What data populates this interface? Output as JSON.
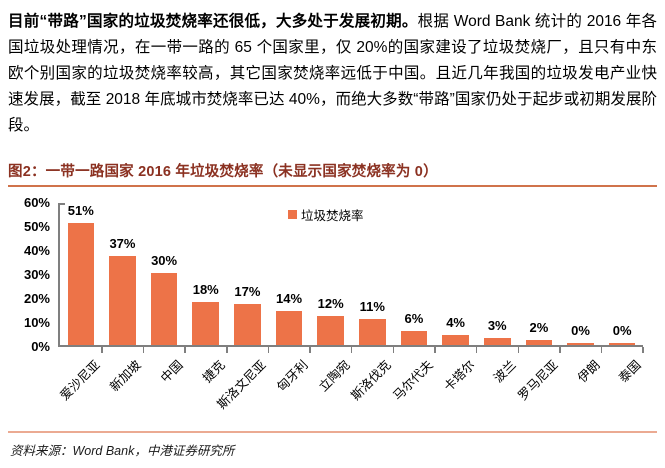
{
  "intro": {
    "lead": "目前“带路”国家的垃圾焚烧率还很低，大多处于发展初期。",
    "body": "根据 Word Bank 统计的 2016 年各国垃圾处理情况，在一带一路的 65 个国家里，仅 20%的国家建设了垃圾焚烧厂，且只有中东欧个别国家的垃圾焚烧率较高，其它国家焚烧率远低于中国。且近几年我国的垃圾发电产业快速发展，截至 2018 年底城市焚烧率已达 40%，而绝大多数“带路”国家仍处于起步或初期发展阶段。"
  },
  "figure": {
    "title": "图2：一带一路国家 2016 年垃圾焚烧率（未显示国家焚烧率为 0）",
    "source": "资料来源：Word Bank，中港证券研究所"
  },
  "chart_data": {
    "type": "bar",
    "title": "一带一路国家 2016 年垃圾焚烧率（未显示国家焚烧率为 0）",
    "legend": [
      {
        "label": "垃圾焚烧率",
        "color": "#ED7348"
      }
    ],
    "legend_position": "top-center",
    "categories": [
      "爱沙尼亚",
      "新加坡",
      "中国",
      "捷克",
      "斯洛文尼亚",
      "匈牙利",
      "立陶宛",
      "斯洛伐克",
      "马尔代夫",
      "卡塔尔",
      "波兰",
      "罗马尼亚",
      "伊朗",
      "泰国"
    ],
    "values": [
      51,
      37,
      30,
      18,
      17,
      14,
      12,
      11,
      6,
      4,
      3,
      2,
      0,
      0
    ],
    "data_labels": [
      "51%",
      "37%",
      "30%",
      "18%",
      "17%",
      "14%",
      "12%",
      "11%",
      "6%",
      "4%",
      "3%",
      "2%",
      "0%",
      "0%"
    ],
    "unit": "%",
    "xlabel": "",
    "ylabel": "",
    "ylim": [
      0,
      60
    ],
    "yticks": [
      "0%",
      "10%",
      "20%",
      "30%",
      "40%",
      "50%",
      "60%"
    ],
    "grid": false,
    "bar_color": "#ED7348"
  },
  "colors": {
    "bar": "#ED7348",
    "figure_title": "#8B3121",
    "title_rule": "#D0734B",
    "source_rule": "#EBAA92",
    "axis": "#7F7F7F"
  }
}
